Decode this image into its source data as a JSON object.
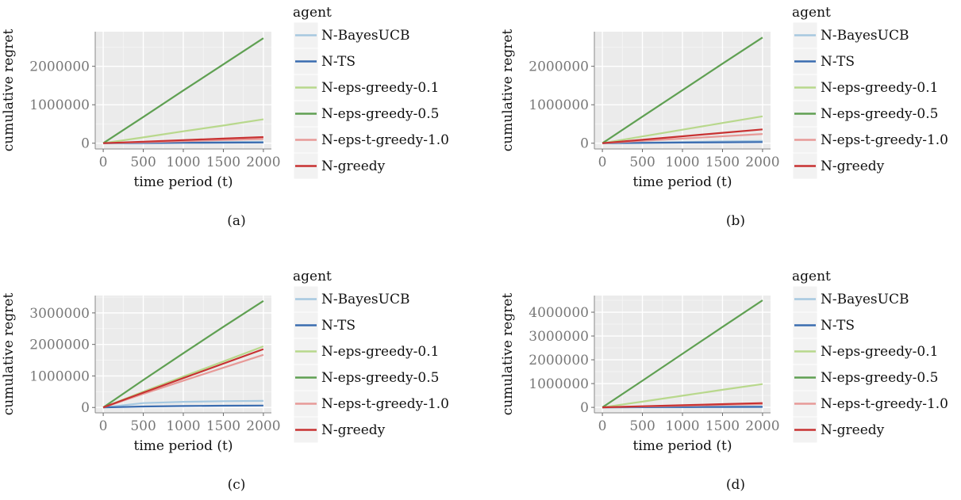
{
  "legend_title": "agent",
  "agents": [
    {
      "name": "N-BayesUCB",
      "color": "#a6c8e0"
    },
    {
      "name": "N-TS",
      "color": "#3a6cb0"
    },
    {
      "name": "N-eps-greedy-0.1",
      "color": "#b8d88c"
    },
    {
      "name": "N-eps-greedy-0.5",
      "color": "#5fa052"
    },
    {
      "name": "N-eps-t-greedy-1.0",
      "color": "#e79a98"
    },
    {
      "name": "N-greedy",
      "color": "#c83232"
    }
  ],
  "chart_data": [
    {
      "type": "line",
      "caption": "(a)",
      "xlabel": "time period (t)",
      "ylabel": "cumulative regret",
      "xlim": [
        -100,
        2100
      ],
      "ylim": [
        -150000,
        2900000
      ],
      "xticks": [
        0,
        500,
        1000,
        1500,
        2000
      ],
      "yticks": [
        0,
        1000000,
        2000000
      ],
      "grid": true,
      "legend": "right",
      "x": [
        0,
        500,
        1000,
        1500,
        2000
      ],
      "series": [
        {
          "name": "N-BayesUCB",
          "values": [
            0,
            10000,
            20000,
            30000,
            40000
          ]
        },
        {
          "name": "N-TS",
          "values": [
            0,
            5000,
            10000,
            15000,
            20000
          ]
        },
        {
          "name": "N-eps-greedy-0.1",
          "values": [
            0,
            150000,
            310000,
            460000,
            620000
          ]
        },
        {
          "name": "N-eps-greedy-0.5",
          "values": [
            0,
            680000,
            1370000,
            2050000,
            2730000
          ]
        },
        {
          "name": "N-eps-t-greedy-1.0",
          "values": [
            0,
            25000,
            55000,
            80000,
            110000
          ]
        },
        {
          "name": "N-greedy",
          "values": [
            0,
            40000,
            80000,
            120000,
            160000
          ]
        }
      ]
    },
    {
      "type": "line",
      "caption": "(b)",
      "xlabel": "time period (t)",
      "ylabel": "cumulative regret",
      "xlim": [
        -100,
        2100
      ],
      "ylim": [
        -150000,
        2900000
      ],
      "xticks": [
        0,
        500,
        1000,
        1500,
        2000
      ],
      "yticks": [
        0,
        1000000,
        2000000
      ],
      "grid": true,
      "legend": "right",
      "x": [
        0,
        500,
        1000,
        1500,
        2000
      ],
      "series": [
        {
          "name": "N-BayesUCB",
          "values": [
            0,
            15000,
            30000,
            45000,
            60000
          ]
        },
        {
          "name": "N-TS",
          "values": [
            0,
            8000,
            16000,
            24000,
            30000
          ]
        },
        {
          "name": "N-eps-greedy-0.1",
          "values": [
            0,
            175000,
            350000,
            525000,
            700000
          ]
        },
        {
          "name": "N-eps-greedy-0.5",
          "values": [
            0,
            690000,
            1380000,
            2070000,
            2750000
          ]
        },
        {
          "name": "N-eps-t-greedy-1.0",
          "values": [
            0,
            60000,
            120000,
            180000,
            240000
          ]
        },
        {
          "name": "N-greedy",
          "values": [
            0,
            90000,
            180000,
            270000,
            360000
          ]
        }
      ]
    },
    {
      "type": "line",
      "caption": "(c)",
      "xlabel": "time period (t)",
      "ylabel": "cumulative regret",
      "xlim": [
        -100,
        2100
      ],
      "ylim": [
        -170000,
        3550000
      ],
      "xticks": [
        0,
        500,
        1000,
        1500,
        2000
      ],
      "yticks": [
        0,
        1000000,
        2000000,
        3000000
      ],
      "grid": true,
      "legend": "right",
      "x": [
        0,
        500,
        1000,
        1500,
        2000
      ],
      "series": [
        {
          "name": "N-BayesUCB",
          "values": [
            0,
            140000,
            180000,
            200000,
            210000
          ]
        },
        {
          "name": "N-TS",
          "values": [
            0,
            30000,
            45000,
            55000,
            60000
          ]
        },
        {
          "name": "N-eps-greedy-0.1",
          "values": [
            0,
            500000,
            980000,
            1460000,
            1940000
          ]
        },
        {
          "name": "N-eps-greedy-0.5",
          "values": [
            0,
            870000,
            1720000,
            2560000,
            3380000
          ]
        },
        {
          "name": "N-eps-t-greedy-1.0",
          "values": [
            0,
            430000,
            850000,
            1260000,
            1670000
          ]
        },
        {
          "name": "N-greedy",
          "values": [
            0,
            470000,
            930000,
            1390000,
            1850000
          ]
        }
      ]
    },
    {
      "type": "line",
      "caption": "(d)",
      "xlabel": "time period (t)",
      "ylabel": "cumulative regret",
      "xlim": [
        -100,
        2100
      ],
      "ylim": [
        -230000,
        4700000
      ],
      "xticks": [
        0,
        500,
        1000,
        1500,
        2000
      ],
      "yticks": [
        0,
        1000000,
        2000000,
        3000000,
        4000000
      ],
      "grid": true,
      "legend": "right",
      "x": [
        0,
        500,
        1000,
        1500,
        2000
      ],
      "series": [
        {
          "name": "N-BayesUCB",
          "values": [
            0,
            10000,
            20000,
            30000,
            40000
          ]
        },
        {
          "name": "N-TS",
          "values": [
            0,
            5000,
            10000,
            15000,
            20000
          ]
        },
        {
          "name": "N-eps-greedy-0.1",
          "values": [
            0,
            240000,
            490000,
            740000,
            980000
          ]
        },
        {
          "name": "N-eps-greedy-0.5",
          "values": [
            0,
            1120000,
            2250000,
            3380000,
            4500000
          ]
        },
        {
          "name": "N-eps-t-greedy-1.0",
          "values": [
            0,
            35000,
            70000,
            105000,
            140000
          ]
        },
        {
          "name": "N-greedy",
          "values": [
            0,
            45000,
            90000,
            135000,
            180000
          ]
        }
      ]
    }
  ]
}
